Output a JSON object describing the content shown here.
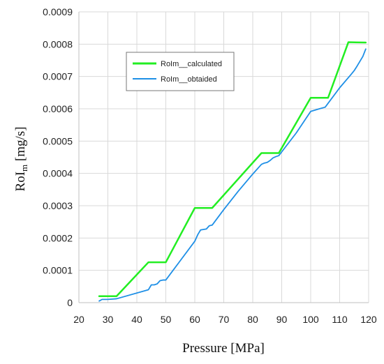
{
  "chart_data": {
    "type": "line",
    "title": "",
    "xlabel": "Pressure [MPa]",
    "ylabel": {
      "main": "RoI",
      "sub": "m",
      "unit": " [mg/s]"
    },
    "xlim": [
      20,
      120
    ],
    "ylim": [
      0,
      0.0009
    ],
    "xticks": [
      20,
      30,
      40,
      50,
      60,
      70,
      80,
      90,
      100,
      110,
      120
    ],
    "yticks": [
      "0",
      "0.0001",
      "0.0002",
      "0.0003",
      "0.0004",
      "0.0005",
      "0.0006",
      "0.0007",
      "0.0008",
      "0.0009"
    ],
    "grid": true,
    "legend_position": "top-left",
    "series": [
      {
        "name": "RoIm__calculated",
        "color": "#22ee22",
        "x": [
          27,
          33,
          44,
          50,
          60,
          66,
          83,
          89,
          100,
          106,
          113,
          119
        ],
        "y": [
          2e-05,
          2e-05,
          0.000125,
          0.000125,
          0.000293,
          0.000293,
          0.000463,
          0.000463,
          0.000634,
          0.000634,
          0.000806,
          0.000805
        ]
      },
      {
        "name": "RoIm__obtaided",
        "color": "#1e8fe6",
        "x": [
          27,
          28,
          30,
          33,
          44,
          45,
          46,
          47,
          48,
          49,
          50,
          55,
          60,
          61,
          62,
          64,
          65,
          66,
          70,
          75,
          80,
          83,
          84,
          85,
          86,
          87,
          88,
          89,
          95,
          100,
          103,
          105,
          110,
          114,
          115,
          116,
          118,
          119
        ],
        "y": [
          5e-06,
          1e-05,
          1e-05,
          1.2e-05,
          4e-05,
          5.5e-05,
          5.5e-05,
          5.8e-05,
          6.8e-05,
          7e-05,
          7e-05,
          0.00013,
          0.00019,
          0.00021,
          0.000225,
          0.000228,
          0.000238,
          0.00024,
          0.000288,
          0.000345,
          0.000398,
          0.000428,
          0.000432,
          0.000434,
          0.00044,
          0.000448,
          0.000452,
          0.000455,
          0.000525,
          0.000592,
          0.0006,
          0.000605,
          0.000665,
          0.000707,
          0.000718,
          0.000732,
          0.000762,
          0.000785
        ]
      }
    ]
  }
}
